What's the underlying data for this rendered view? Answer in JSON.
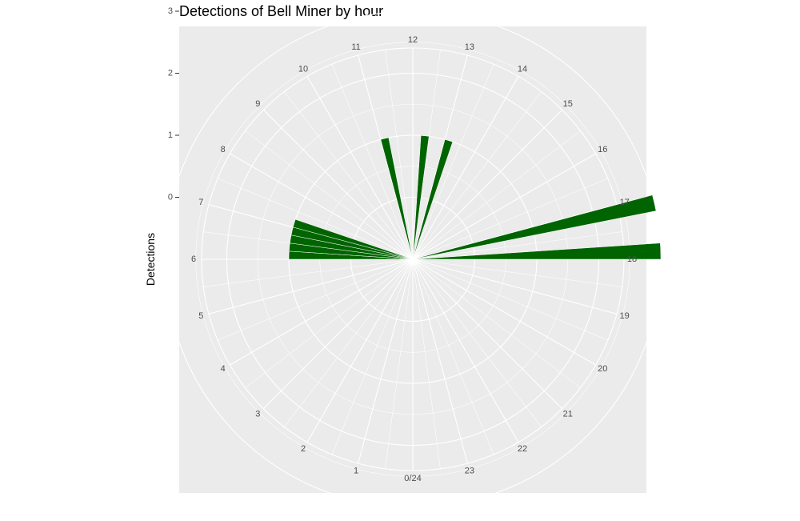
{
  "chart_data": {
    "type": "bar",
    "coord": "polar",
    "title": "Detections of Bell Miner by hour",
    "ylabel": "Detections",
    "xlabel": "",
    "categories": [
      "0/24",
      "1",
      "2",
      "3",
      "4",
      "5",
      "6",
      "7",
      "8",
      "9",
      "10",
      "11",
      "12",
      "13",
      "14",
      "15",
      "16",
      "17",
      "18",
      "19",
      "20",
      "21",
      "22",
      "23"
    ],
    "bar_hours": [
      6,
      6.25,
      6.5,
      6.75,
      7,
      11,
      12.25,
      13,
      17,
      17.75
    ],
    "bar_values": [
      1,
      1,
      1,
      1,
      1,
      1,
      1,
      1,
      3,
      3
    ],
    "yticks": [
      0,
      1,
      2,
      3
    ],
    "ylim": [
      0,
      3
    ],
    "bar_color": "#006400",
    "grid": true
  }
}
